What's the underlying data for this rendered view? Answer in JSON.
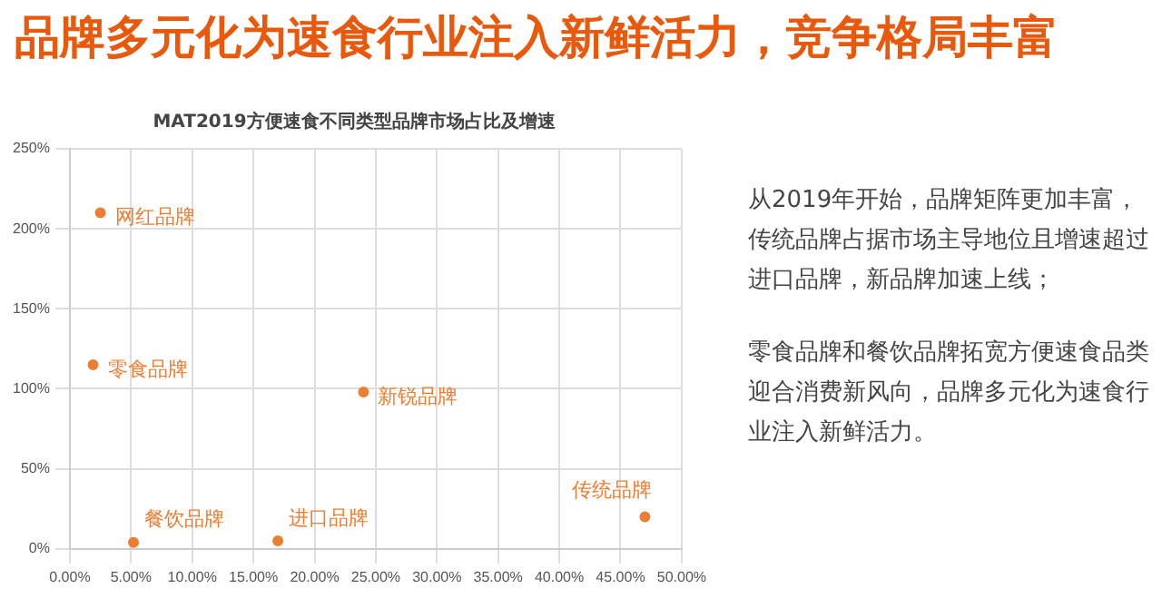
{
  "chart_data": {
    "type": "scatter",
    "title": "品牌多元化为速食行业注入新鲜活力，竞争格局丰富",
    "subtitle": "MAT2019方便速食不同类型品牌市场占比及增速",
    "series": [
      {
        "color": "#ed7d31",
        "x": [
          2.5,
          1.9,
          24.0,
          5.2,
          17.0,
          47.0
        ],
        "values": [
          210,
          115,
          98,
          4,
          5,
          20
        ]
      }
    ],
    "xlim": [
      0,
      50
    ],
    "xticks": [
      {
        "value": 0,
        "label": "0.00%"
      },
      {
        "value": 5,
        "label": "5.00%"
      },
      {
        "value": 10,
        "label": "10.00%"
      },
      {
        "value": 15,
        "label": "15.00%"
      },
      {
        "value": 20,
        "label": "20.00%"
      },
      {
        "value": 25,
        "label": "25.00%"
      },
      {
        "value": 30,
        "label": "30.00%"
      },
      {
        "value": 35,
        "label": "35.00%"
      },
      {
        "value": 40,
        "label": "40.00%"
      },
      {
        "value": 45,
        "label": "45.00%"
      },
      {
        "value": 50,
        "label": "50.00%"
      }
    ],
    "ylim": [
      0,
      250
    ],
    "yticks": [
      {
        "value": 0,
        "label": "0%"
      },
      {
        "value": 50,
        "label": "50%"
      },
      {
        "value": 100,
        "label": "100%"
      },
      {
        "value": 150,
        "label": "150%"
      },
      {
        "value": 200,
        "label": "200%"
      },
      {
        "value": 250,
        "label": "250%"
      }
    ],
    "grid": true,
    "legend": false,
    "marker": "circle",
    "annotations": [
      {
        "text": "网红品牌",
        "x": 2.5,
        "y": 210
      },
      {
        "text": "零食品牌",
        "x": 1.9,
        "y": 115
      },
      {
        "text": "新锐品牌",
        "x": 24.0,
        "y": 98
      },
      {
        "text": "餐饮品牌",
        "x": 5.2,
        "y": 4
      },
      {
        "text": "进口品牌",
        "x": 17.0,
        "y": 5
      },
      {
        "text": "传统品牌",
        "x": 47.0,
        "y": 20
      },
      "从2019年开始，品牌矩阵更加丰富，传统品牌占据市场主导地位且增速超过进口品牌，新品牌加速上线；",
      "零食品牌和餐饮品牌拓宽方便速食品类迎合消费新风向，品牌多元化为速食行业注入新鲜活力。"
    ]
  }
}
